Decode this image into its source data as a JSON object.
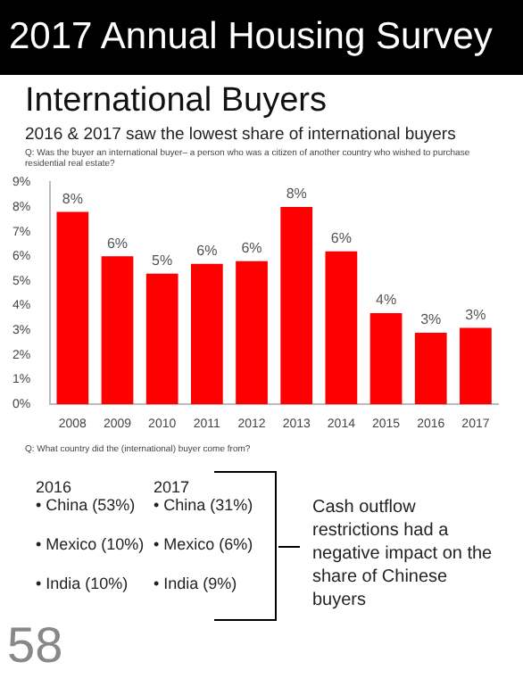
{
  "chart_data": {
    "type": "bar",
    "title": "2017 Annual Housing Survey",
    "subtitle": "International Buyers",
    "annotations": [
      "2016 & 2017 saw the lowest share of international buyers",
      "Q: Was the buyer an international buyer– a person who was a citizen of another country who wished to purchase residential real estate?",
      "Q: What country did the (international) buyer come from?",
      "2016",
      "2017",
      "• China (53%)",
      "• Mexico (10%)",
      "• India (10%)",
      "• China (31%)",
      "• Mexico (6%)",
      "• India (9%)",
      "Cash outflow restrictions had a negative impact on the share of Chinese buyers",
      "58"
    ],
    "categories": [
      "2008",
      "2009",
      "2010",
      "2011",
      "2012",
      "2013",
      "2014",
      "2015",
      "2016",
      "2017"
    ],
    "values": [
      7.8,
      6.0,
      5.3,
      5.7,
      5.8,
      8.0,
      6.2,
      3.7,
      2.9,
      3.1
    ],
    "value_labels": [
      "8%",
      "6%",
      "5%",
      "6%",
      "6%",
      "8%",
      "6%",
      "4%",
      "3%",
      "3%"
    ],
    "color": "#ff0000",
    "ylim": [
      0,
      9
    ],
    "yticks": [
      {
        "value": 0,
        "label": "0%"
      },
      {
        "value": 1,
        "label": "1%"
      },
      {
        "value": 2,
        "label": "2%"
      },
      {
        "value": 3,
        "label": "3%"
      },
      {
        "value": 4,
        "label": "4%"
      },
      {
        "value": 5,
        "label": "5%"
      },
      {
        "value": 6,
        "label": "6%"
      },
      {
        "value": 7,
        "label": "7%"
      },
      {
        "value": 8,
        "label": "8%"
      },
      {
        "value": 9,
        "label": "9%"
      }
    ],
    "grid": false,
    "legend": false
  }
}
